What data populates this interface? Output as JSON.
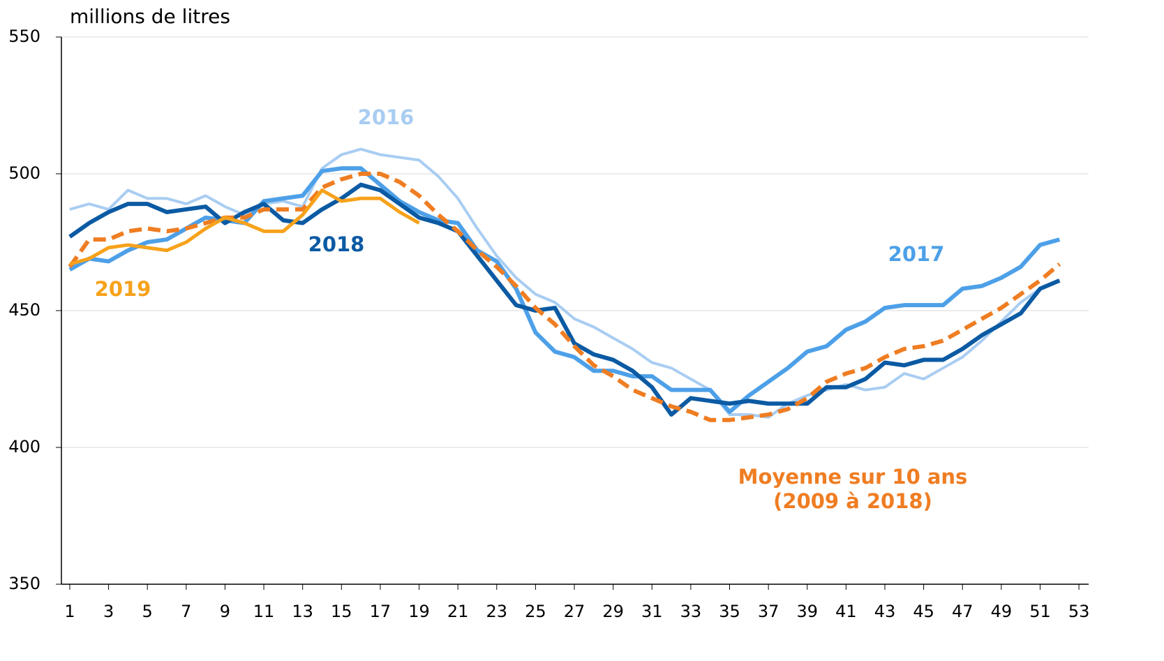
{
  "chart_data": {
    "type": "line",
    "y_axis_label": "millions de litres",
    "x": [
      1,
      2,
      3,
      4,
      5,
      6,
      7,
      8,
      9,
      10,
      11,
      12,
      13,
      14,
      15,
      16,
      17,
      18,
      19,
      20,
      21,
      22,
      23,
      24,
      25,
      26,
      27,
      28,
      29,
      30,
      31,
      32,
      33,
      34,
      35,
      36,
      37,
      38,
      39,
      40,
      41,
      42,
      43,
      44,
      45,
      46,
      47,
      48,
      49,
      50,
      51,
      52
    ],
    "series": [
      {
        "name": "2016",
        "color": "#a9cdf2",
        "values": [
          487,
          489,
          487,
          494,
          491,
          491,
          489,
          492,
          488,
          485,
          489,
          490,
          488,
          502,
          507,
          509,
          507,
          506,
          505,
          499,
          491,
          480,
          470,
          462,
          456,
          453,
          447,
          444,
          440,
          436,
          431,
          429,
          425,
          421,
          412,
          412,
          411,
          416,
          419,
          421,
          423,
          421,
          422,
          427,
          425,
          429,
          433,
          439,
          446,
          453,
          458,
          461
        ]
      },
      {
        "name": "2017",
        "color": "#4da0e8",
        "values": [
          465,
          469,
          468,
          472,
          475,
          476,
          480,
          484,
          483,
          482,
          490,
          491,
          492,
          501,
          502,
          502,
          496,
          490,
          486,
          483,
          482,
          472,
          468,
          458,
          442,
          435,
          433,
          428,
          428,
          426,
          426,
          421,
          421,
          421,
          413,
          419,
          424,
          429,
          435,
          437,
          443,
          446,
          451,
          452,
          452,
          452,
          458,
          459,
          462,
          466,
          474,
          476
        ]
      },
      {
        "name": "2018",
        "color": "#0b5aa3",
        "values": [
          477,
          482,
          486,
          489,
          489,
          486,
          487,
          488,
          482,
          486,
          489,
          483,
          482,
          487,
          491,
          496,
          494,
          489,
          484,
          482,
          479,
          470,
          461,
          452,
          450,
          451,
          438,
          434,
          432,
          428,
          422,
          412,
          418,
          417,
          416,
          417,
          416,
          416,
          416,
          422,
          422,
          425,
          431,
          430,
          432,
          432,
          436,
          441,
          445,
          449,
          458,
          461
        ]
      },
      {
        "name": "Moyenne sur 10 ans (2009 à 2018)",
        "color": "#ef7d22",
        "dashed": true,
        "values": [
          466,
          476,
          476,
          479,
          480,
          479,
          480,
          482,
          484,
          484,
          487,
          487,
          487,
          495,
          498,
          500,
          500,
          497,
          492,
          485,
          479,
          472,
          466,
          459,
          451,
          445,
          437,
          430,
          426,
          421,
          418,
          415,
          413,
          410,
          410,
          411,
          412,
          414,
          418,
          424,
          427,
          429,
          433,
          436,
          437,
          439,
          443,
          447,
          451,
          456,
          461,
          467
        ]
      },
      {
        "name": "2019",
        "color": "#f7a21b",
        "values": [
          467,
          469,
          473,
          474,
          473,
          472,
          475,
          480,
          484,
          482,
          479,
          479,
          485,
          494,
          490,
          491,
          491,
          486,
          482,
          null,
          null,
          null,
          null,
          null,
          null,
          null,
          null,
          null,
          null,
          null,
          null,
          null,
          null,
          null,
          null,
          null,
          null,
          null,
          null,
          null,
          null,
          null,
          null,
          null,
          null,
          null,
          null,
          null,
          null,
          null,
          null,
          null
        ]
      }
    ],
    "xlim": [
      0.57,
      53.5
    ],
    "xticks": [
      1,
      3,
      5,
      7,
      9,
      11,
      13,
      15,
      17,
      19,
      21,
      23,
      25,
      27,
      29,
      31,
      33,
      35,
      37,
      39,
      41,
      43,
      45,
      47,
      49,
      51,
      53
    ],
    "ylim": [
      350,
      550
    ],
    "yticks": [
      350,
      400,
      450,
      500,
      550
    ],
    "grid": true
  }
}
